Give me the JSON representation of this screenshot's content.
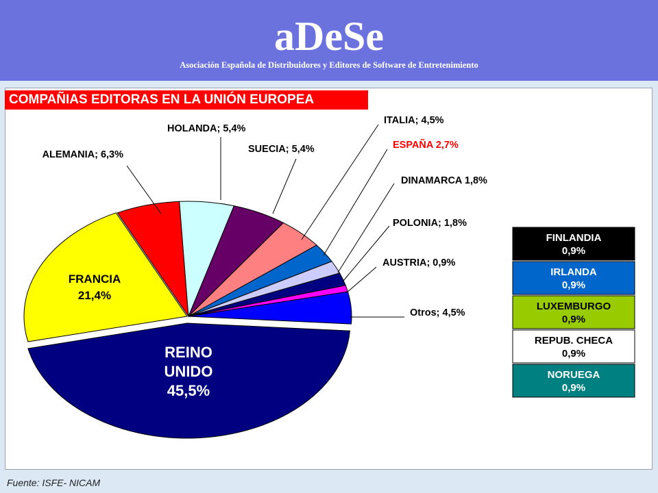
{
  "header": {
    "brand": "aDeSe",
    "subtitle": "Asociación Española de Distribuidores y Editores de Software de Entretenimiento"
  },
  "source": "Fuente: ISFE- NICAM",
  "chart_data": {
    "type": "pie",
    "title": "COMPAÑIAS EDITORAS EN LA UNIÓN EUROPEA",
    "slices": [
      {
        "name": "REINO UNIDO",
        "value": 45.5,
        "label": [
          "REINO",
          "UNIDO",
          "45,5%"
        ],
        "color": "#000080"
      },
      {
        "name": "FRANCIA",
        "value": 21.4,
        "label": [
          "FRANCIA",
          "21,4%"
        ],
        "color": "#ffff00"
      },
      {
        "name": "ALEMANIA",
        "value": 6.3,
        "label": [
          "ALEMANIA; 6,3%"
        ],
        "color": "#ff0000"
      },
      {
        "name": "HOLANDA",
        "value": 5.4,
        "label": [
          "HOLANDA; 5,4%"
        ],
        "color": "#ccffff"
      },
      {
        "name": "SUECIA",
        "value": 5.4,
        "label": [
          "SUECIA; 5,4%"
        ],
        "color": "#660066"
      },
      {
        "name": "ITALIA",
        "value": 4.5,
        "label": [
          "ITALIA; 4,5%"
        ],
        "color": "#ff8080"
      },
      {
        "name": "ESPAÑA",
        "value": 2.7,
        "label": [
          "ESPAÑA 2,7%"
        ],
        "color": "#0066cc",
        "labelColor": "#ff0000"
      },
      {
        "name": "DINAMARCA",
        "value": 1.8,
        "label": [
          "DINAMARCA 1,8%"
        ],
        "color": "#ccccff"
      },
      {
        "name": "POLONIA",
        "value": 1.8,
        "label": [
          "POLONIA; 1,8%"
        ],
        "color": "#000080"
      },
      {
        "name": "AUSTRIA",
        "value": 0.9,
        "label": [
          "AUSTRIA; 0,9%"
        ],
        "color": "#ff00ff"
      },
      {
        "name": "Otros",
        "value": 4.5,
        "label": [
          "Otros; 4,5%"
        ],
        "color": "#0000ff"
      }
    ],
    "boxes": [
      {
        "name": "FINLANDIA",
        "value": "0,9%",
        "bg": "#000000",
        "fg": "#ffffff"
      },
      {
        "name": "IRLANDA",
        "value": "0,9%",
        "bg": "#0066cc",
        "fg": "#ffffff"
      },
      {
        "name": "LUXEMBURGO",
        "value": "0,9%",
        "bg": "#99cc00",
        "fg": "#000000"
      },
      {
        "name": "REPUB. CHECA",
        "value": "0,9%",
        "bg": "#ffffff",
        "fg": "#000000"
      },
      {
        "name": "NORUEGA",
        "value": "0,9%",
        "bg": "#008080",
        "fg": "#ffffff"
      }
    ]
  }
}
